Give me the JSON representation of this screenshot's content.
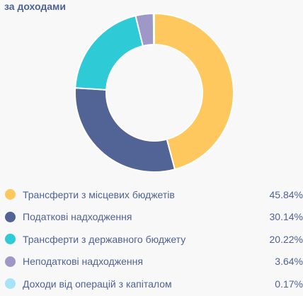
{
  "title": "за доходами",
  "chart_data": {
    "type": "pie",
    "series": [
      {
        "name": "Трансферти з місцевих бюджетів",
        "value": 45.84,
        "value_label": "45.84%",
        "color": "#ffc85e"
      },
      {
        "name": "Податкові надходження",
        "value": 30.14,
        "value_label": "30.14%",
        "color": "#526395"
      },
      {
        "name": "Трансферти з державного бюджету",
        "value": 20.22,
        "value_label": "20.22%",
        "color": "#2ecad6"
      },
      {
        "name": "Неподаткові надходження",
        "value": 3.64,
        "value_label": "3.64%",
        "color": "#9d98c8"
      },
      {
        "name": "Доходи від операцій з капіталом",
        "value": 0.17,
        "value_label": "0.17%",
        "color": "#a6e3f8"
      }
    ]
  }
}
